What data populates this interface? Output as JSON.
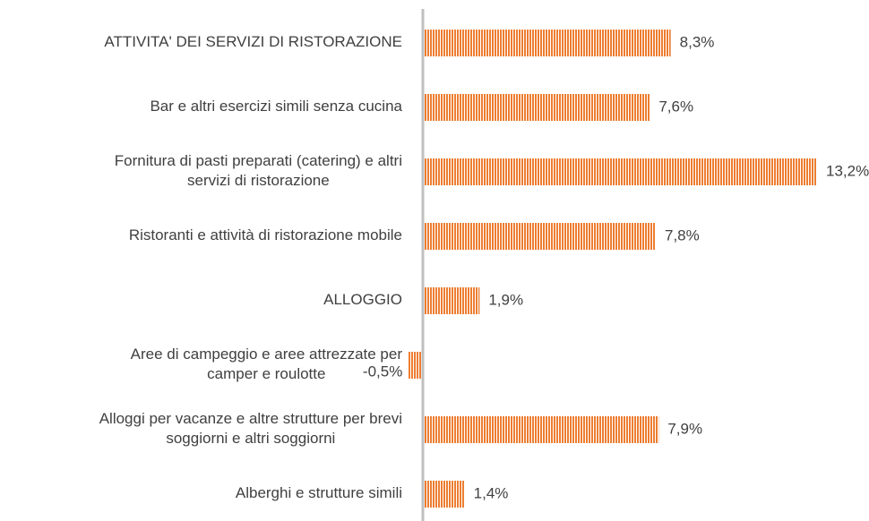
{
  "chart_data": {
    "type": "bar",
    "orientation": "horizontal",
    "categories": [
      "ATTIVITA' DEI SERVIZI DI RISTORAZIONE",
      "Bar e altri esercizi simili senza cucina",
      "Fornitura di pasti preparati (catering) e altri\nservizi di ristorazione",
      "Ristoranti e attività di ristorazione mobile",
      "ALLOGGIO",
      "Aree di campeggio e aree attrezzate per\ncamper e roulotte",
      "Alloggi per vacanze e altre strutture per brevi\nsoggiorni e altri soggiorni",
      "Alberghi e strutture simili"
    ],
    "values": [
      8.3,
      7.6,
      13.2,
      7.8,
      1.9,
      -0.5,
      7.9,
      1.4
    ],
    "value_labels": [
      "8,3%",
      "7,6%",
      "13,2%",
      "7,8%",
      "1,9%",
      "-0,5%",
      "7,9%",
      "1,4%"
    ],
    "color": "#ed7d31"
  }
}
